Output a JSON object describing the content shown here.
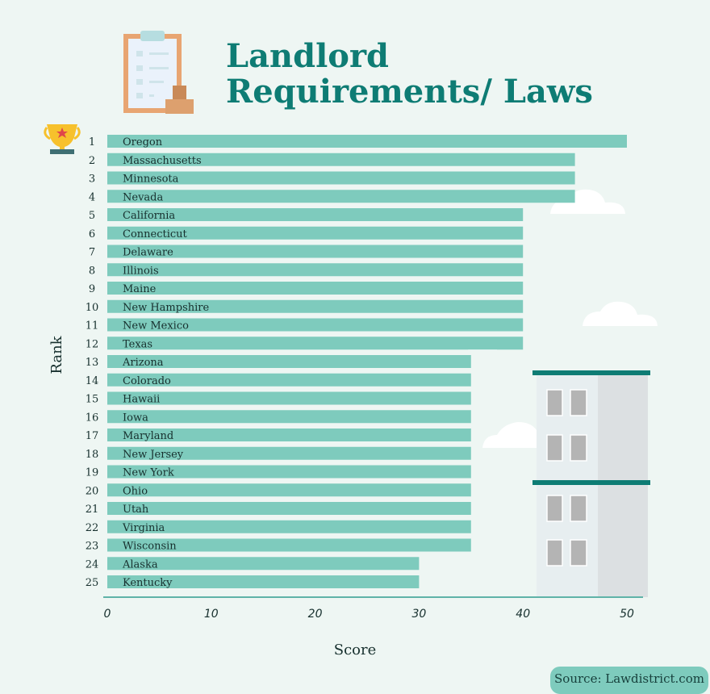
{
  "title": "Landlord Requirements/ Laws",
  "source": "Source: Lawdistrict.com",
  "colors": {
    "bar": "#7ecbbd",
    "title": "#0e7c74",
    "background": "#eef6f3",
    "axis": "#5fb3a8"
  },
  "icons": [
    "clipboard-icon",
    "trophy-icon",
    "building-icon",
    "cloud-icon"
  ],
  "chart_data": {
    "type": "bar",
    "orientation": "horizontal",
    "title": "Landlord Requirements/ Laws",
    "xlabel": "Score",
    "ylabel": "Rank",
    "xlim": [
      0,
      50
    ],
    "xticks": [
      0,
      10,
      20,
      30,
      40,
      50
    ],
    "grid": false,
    "ranks": [
      1,
      2,
      3,
      4,
      5,
      6,
      7,
      8,
      9,
      10,
      11,
      12,
      13,
      14,
      15,
      16,
      17,
      18,
      19,
      20,
      21,
      22,
      23,
      24,
      25
    ],
    "categories": [
      "Oregon",
      "Massachusetts",
      "Minnesota",
      "Nevada",
      "California",
      "Connecticut",
      "Delaware",
      "Illinois",
      "Maine",
      "New Hampshire",
      "New Mexico",
      "Texas",
      "Arizona",
      "Colorado",
      "Hawaii",
      "Iowa",
      "Maryland",
      "New Jersey",
      "New York",
      "Ohio",
      "Utah",
      "Virginia",
      "Wisconsin",
      "Alaska",
      "Kentucky"
    ],
    "values": [
      50,
      45,
      45,
      45,
      40,
      40,
      40,
      40,
      40,
      40,
      40,
      40,
      35,
      35,
      35,
      35,
      35,
      35,
      35,
      35,
      35,
      35,
      35,
      30,
      30
    ]
  }
}
